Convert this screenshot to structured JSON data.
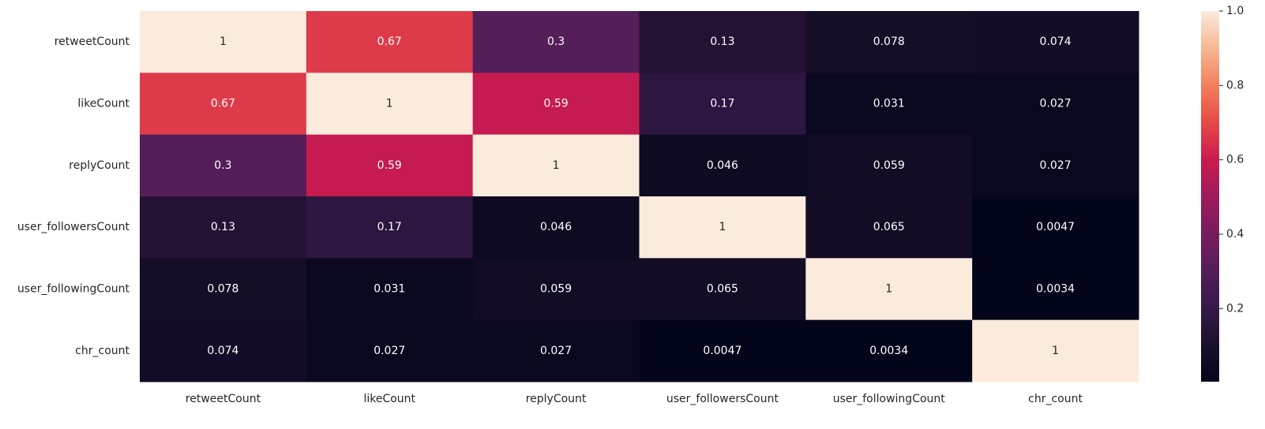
{
  "chart_data": {
    "type": "heatmap",
    "title": "",
    "xlabel": "",
    "ylabel": "",
    "rows": [
      "retweetCount",
      "likeCount",
      "replyCount",
      "user_followersCount",
      "user_followingCount",
      "chr_count"
    ],
    "columns": [
      "retweetCount",
      "likeCount",
      "replyCount",
      "user_followersCount",
      "user_followingCount",
      "chr_count"
    ],
    "values": [
      [
        1,
        0.67,
        0.3,
        0.13,
        0.078,
        0.074
      ],
      [
        0.67,
        1,
        0.59,
        0.17,
        0.031,
        0.027
      ],
      [
        0.3,
        0.59,
        1,
        0.046,
        0.059,
        0.027
      ],
      [
        0.13,
        0.17,
        0.046,
        1,
        0.065,
        0.0047
      ],
      [
        0.078,
        0.031,
        0.059,
        0.065,
        1,
        0.0034
      ],
      [
        0.074,
        0.027,
        0.027,
        0.0047,
        0.0034,
        1
      ]
    ],
    "labels": [
      [
        "1",
        "0.67",
        "0.3",
        "0.13",
        "0.078",
        "0.074"
      ],
      [
        "0.67",
        "1",
        "0.59",
        "0.17",
        "0.031",
        "0.027"
      ],
      [
        "0.3",
        "0.59",
        "1",
        "0.046",
        "0.059",
        "0.027"
      ],
      [
        "0.13",
        "0.17",
        "0.046",
        "1",
        "0.065",
        "0.0047"
      ],
      [
        "0.078",
        "0.031",
        "0.059",
        "0.065",
        "1",
        "0.0034"
      ],
      [
        "0.074",
        "0.027",
        "0.027",
        "0.0047",
        "0.0034",
        "1"
      ]
    ],
    "colorbar": {
      "min": 0.0034,
      "max": 1.0,
      "ticks": [
        0.2,
        0.4,
        0.6,
        0.8,
        1.0
      ],
      "tick_labels": [
        "0.2",
        "0.4",
        "0.6",
        "0.8",
        "1.0"
      ],
      "colormap": "rocket"
    },
    "grid": false,
    "legend": "colorbar-right"
  }
}
